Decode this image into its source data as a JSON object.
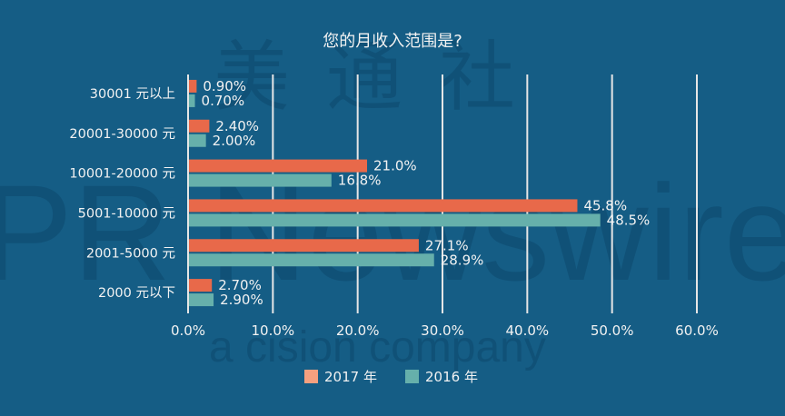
{
  "watermark": [
    "美通社",
    "PR Newswire",
    "a cision company"
  ],
  "chart_data": {
    "type": "bar",
    "orientation": "horizontal",
    "title": "您的月收入范围是?",
    "categories": [
      "30001 元以上",
      "20001-30000 元",
      "10001-20000 元",
      "5001-10000 元",
      "2001-5000 元",
      "2000 元以下"
    ],
    "series": [
      {
        "name": "2017 年",
        "color": "#e8694a",
        "legend_color": "#f5a07f",
        "values": [
          0.9,
          2.4,
          21.0,
          45.8,
          27.1,
          2.7
        ],
        "labels": [
          "0.90%",
          "2.40%",
          "21.0%",
          "45.8%",
          "27.1%",
          "2.70%"
        ]
      },
      {
        "name": "2016 年",
        "color": "#66b0ab",
        "legend_color": "#66b0ab",
        "values": [
          0.7,
          2.0,
          16.8,
          48.5,
          28.9,
          2.9
        ],
        "labels": [
          "0.70%",
          "2.00%",
          "16.8%",
          "48.5%",
          "28.9%",
          "2.90%"
        ]
      }
    ],
    "xlim": [
      0,
      60
    ],
    "xticks": [
      "0.0%",
      "10.0%",
      "20.0%",
      "30.0%",
      "40.0%",
      "50.0%",
      "60.0%"
    ],
    "grid": true,
    "legend": "bottom"
  }
}
